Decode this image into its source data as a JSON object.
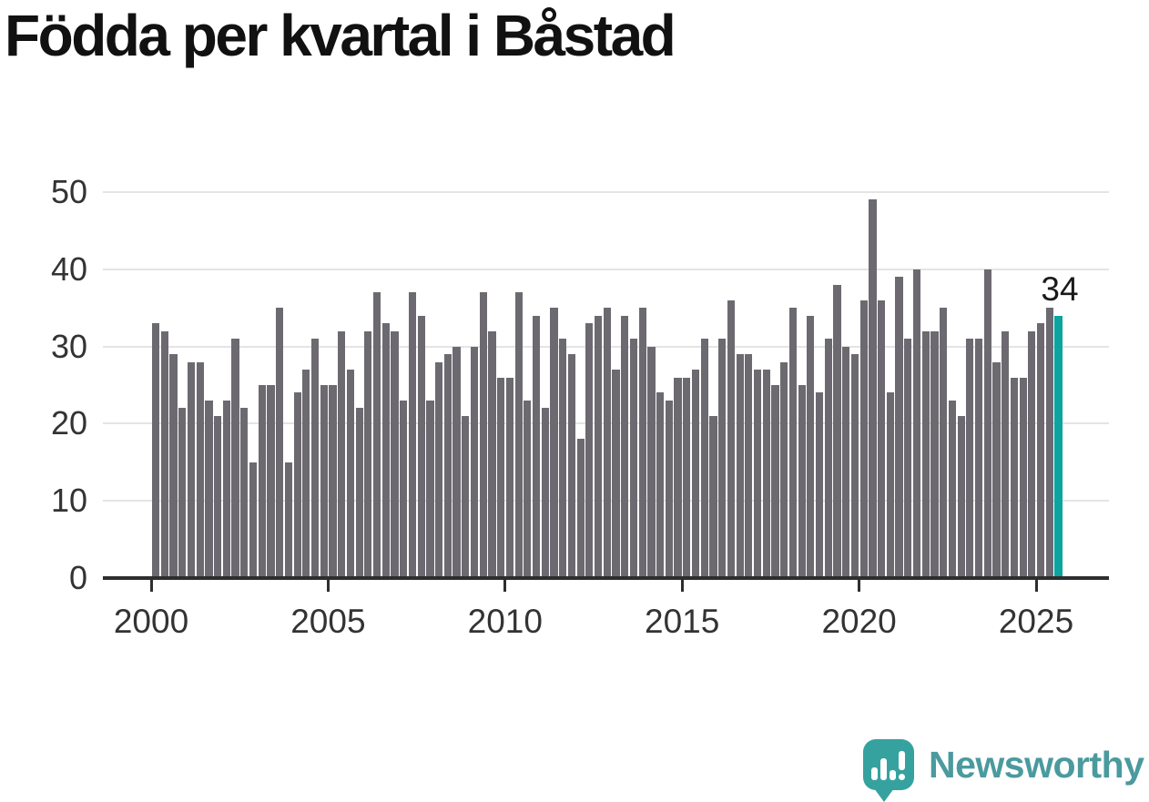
{
  "title": "Födda per kvartal i Båstad",
  "chart_data": {
    "type": "bar",
    "title": "Födda per kvartal i Båstad",
    "x_unit": "quarter",
    "x_range_start": "2000",
    "x_range_end": "2025",
    "x_tick_labels": [
      "2000",
      "2005",
      "2010",
      "2015",
      "2020",
      "2025"
    ],
    "y_tick_labels": [
      "0",
      "10",
      "20",
      "30",
      "40",
      "50"
    ],
    "ylim": [
      0,
      50
    ],
    "grid": "horizontal",
    "legend": "none",
    "values": [
      33,
      32,
      29,
      22,
      28,
      28,
      23,
      21,
      23,
      31,
      22,
      15,
      25,
      25,
      35,
      15,
      24,
      27,
      31,
      25,
      25,
      32,
      27,
      22,
      32,
      37,
      33,
      32,
      23,
      37,
      34,
      23,
      28,
      29,
      30,
      21,
      30,
      37,
      32,
      26,
      26,
      37,
      23,
      34,
      22,
      35,
      31,
      29,
      18,
      33,
      34,
      35,
      27,
      34,
      31,
      35,
      30,
      24,
      23,
      26,
      26,
      27,
      31,
      21,
      31,
      36,
      29,
      29,
      27,
      27,
      25,
      28,
      35,
      25,
      34,
      24,
      31,
      38,
      30,
      29,
      36,
      49,
      36,
      24,
      39,
      31,
      40,
      32,
      32,
      35,
      23,
      21,
      31,
      31,
      40,
      28,
      32,
      26,
      26,
      32,
      33,
      35,
      34
    ],
    "highlight_last_bar": true,
    "last_value_label": "34",
    "colors": {
      "bar": "#6c6a70",
      "highlight": "#0ba4a0",
      "grid": "#e4e4e4",
      "axis": "#2e2e2e",
      "tick_text": "#333333",
      "title_text": "#111111",
      "annotation_text": "#1a1a1a"
    }
  },
  "annotation": {
    "label": "34"
  },
  "branding": {
    "name": "Newsworthy",
    "text_color": "#4a9a9e",
    "icon_color": "#36a29f",
    "icon": "newsworthy-bar-chart-bubble-icon"
  }
}
